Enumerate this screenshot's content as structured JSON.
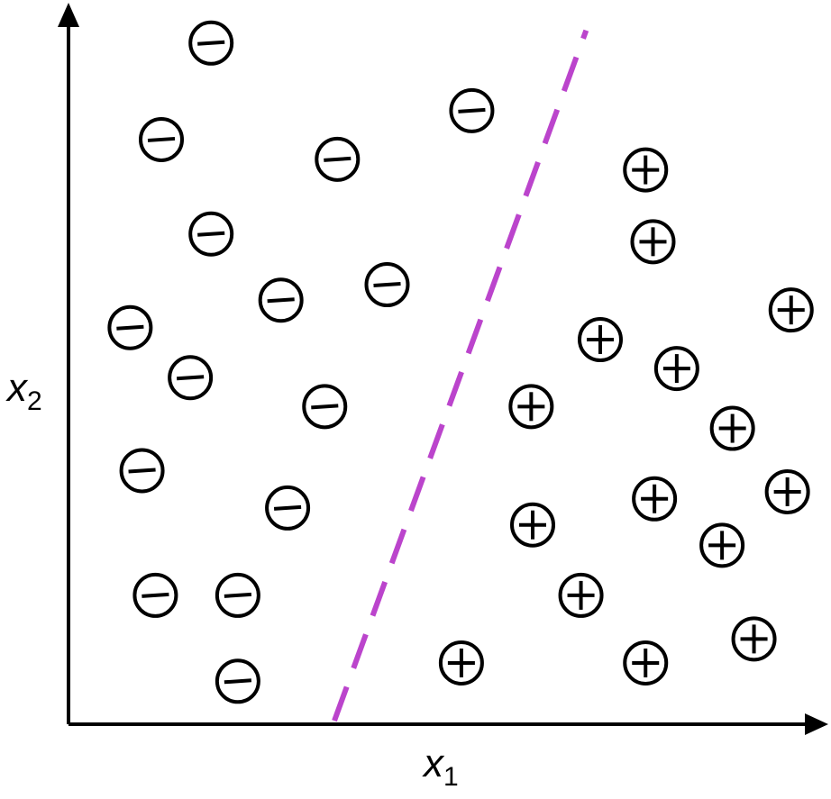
{
  "chart_data": {
    "type": "scatter",
    "title": "",
    "xlabel": "x",
    "xlabel_sub": "1",
    "ylabel": "x",
    "ylabel_sub": "2",
    "xlim": [
      0,
      10
    ],
    "ylim": [
      0,
      10
    ],
    "grid": false,
    "legend": "none",
    "colors": {
      "points": "#000000",
      "boundary": "#bb44cc",
      "axes": "#000000"
    },
    "series": [
      {
        "marker": "minus",
        "points": [
          {
            "x": 1.92,
            "y": 9.67
          },
          {
            "x": 1.25,
            "y": 8.3
          },
          {
            "x": 3.62,
            "y": 8.02
          },
          {
            "x": 5.43,
            "y": 8.71
          },
          {
            "x": 1.92,
            "y": 6.96
          },
          {
            "x": 4.29,
            "y": 6.24
          },
          {
            "x": 2.86,
            "y": 6.02
          },
          {
            "x": 0.83,
            "y": 5.63
          },
          {
            "x": 1.64,
            "y": 4.92
          },
          {
            "x": 3.45,
            "y": 4.51
          },
          {
            "x": 0.99,
            "y": 3.6
          },
          {
            "x": 2.95,
            "y": 3.07
          },
          {
            "x": 1.17,
            "y": 1.83
          },
          {
            "x": 2.28,
            "y": 1.83
          },
          {
            "x": 2.28,
            "y": 0.61
          }
        ]
      },
      {
        "marker": "plus",
        "points": [
          {
            "x": 7.77,
            "y": 7.87
          },
          {
            "x": 7.87,
            "y": 6.85
          },
          {
            "x": 9.73,
            "y": 5.88
          },
          {
            "x": 7.16,
            "y": 5.46
          },
          {
            "x": 8.19,
            "y": 5.05
          },
          {
            "x": 6.23,
            "y": 4.51
          },
          {
            "x": 8.94,
            "y": 4.2
          },
          {
            "x": 9.68,
            "y": 3.3
          },
          {
            "x": 7.89,
            "y": 3.2
          },
          {
            "x": 6.25,
            "y": 2.83
          },
          {
            "x": 8.8,
            "y": 2.54
          },
          {
            "x": 6.9,
            "y": 1.83
          },
          {
            "x": 5.29,
            "y": 0.87
          },
          {
            "x": 7.77,
            "y": 0.87
          },
          {
            "x": 9.23,
            "y": 1.21
          }
        ]
      }
    ],
    "decision_boundary": {
      "style": "dashed",
      "points": [
        {
          "x": 3.58,
          "y": 0.05
        },
        {
          "x": 6.97,
          "y": 9.85
        }
      ]
    }
  }
}
